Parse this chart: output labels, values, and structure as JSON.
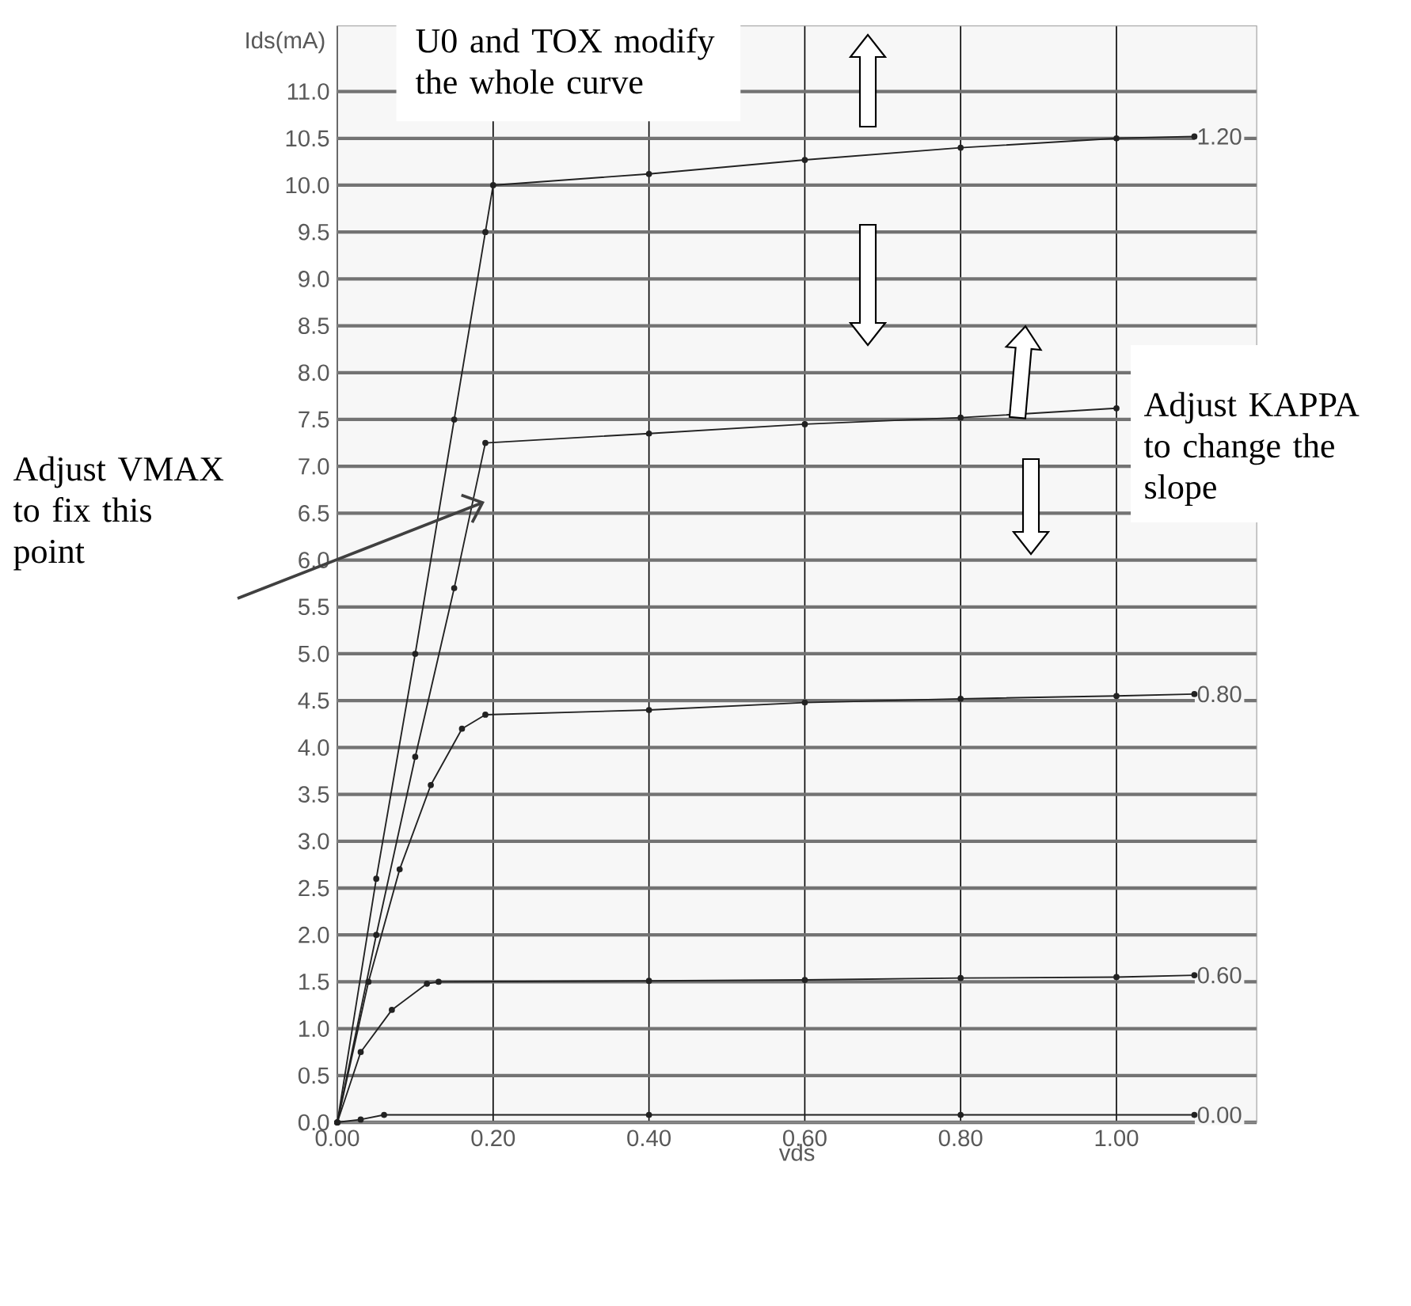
{
  "chart_data": {
    "type": "line",
    "xlabel": "vds",
    "ylabel": "Ids(mA)",
    "xlim": [
      0,
      1.18
    ],
    "ylim": [
      0,
      11.7
    ],
    "xticks": [
      {
        "value": 0,
        "label": "0.00"
      },
      {
        "value": 0.2,
        "label": "0.20"
      },
      {
        "value": 0.4,
        "label": "0.40"
      },
      {
        "value": 0.6,
        "label": "0.60"
      },
      {
        "value": 0.8,
        "label": "0.80"
      },
      {
        "value": 1.0,
        "label": "1.00"
      }
    ],
    "yticks": [
      {
        "value": 0,
        "label": "0.0"
      },
      {
        "value": 0.5,
        "label": "0.5"
      },
      {
        "value": 1,
        "label": "1.0"
      },
      {
        "value": 1.5,
        "label": "1.5"
      },
      {
        "value": 2,
        "label": "2.0"
      },
      {
        "value": 2.5,
        "label": "2.5"
      },
      {
        "value": 3,
        "label": "3.0"
      },
      {
        "value": 3.5,
        "label": "3.5"
      },
      {
        "value": 4,
        "label": "4.0"
      },
      {
        "value": 4.5,
        "label": "4.5"
      },
      {
        "value": 5,
        "label": "5.0"
      },
      {
        "value": 5.5,
        "label": "5.5"
      },
      {
        "value": 6,
        "label": "6.0"
      },
      {
        "value": 6.5,
        "label": "6.5"
      },
      {
        "value": 7,
        "label": "7.0"
      },
      {
        "value": 7.5,
        "label": "7.5"
      },
      {
        "value": 8,
        "label": "8.0"
      },
      {
        "value": 8.5,
        "label": "8.5"
      },
      {
        "value": 9,
        "label": "9.0"
      },
      {
        "value": 9.5,
        "label": "9.5"
      },
      {
        "value": 10,
        "label": "10.0"
      },
      {
        "value": 10.5,
        "label": "10.5"
      },
      {
        "value": 11,
        "label": "11.0"
      }
    ],
    "grid": true,
    "marker": "circle",
    "series": [
      {
        "name": "1.20",
        "color": "#222222",
        "x": [
          0,
          0.05,
          0.1,
          0.15,
          0.19,
          0.2,
          0.4,
          0.6,
          0.8,
          1.0,
          1.1
        ],
        "values": [
          0,
          2.6,
          5.0,
          7.5,
          9.5,
          10.0,
          10.12,
          10.27,
          10.4,
          10.5,
          10.52
        ]
      },
      {
        "color": "#222222",
        "x": [
          0,
          0.05,
          0.1,
          0.15,
          0.19,
          0.4,
          0.6,
          0.8,
          1.0
        ],
        "values": [
          0,
          2.0,
          3.9,
          5.7,
          7.25,
          7.35,
          7.45,
          7.52,
          7.62
        ]
      },
      {
        "name": "0.80",
        "color": "#222222",
        "x": [
          0,
          0.04,
          0.08,
          0.12,
          0.16,
          0.19,
          0.4,
          0.6,
          0.8,
          1.0,
          1.1
        ],
        "values": [
          0,
          1.5,
          2.7,
          3.6,
          4.2,
          4.35,
          4.4,
          4.48,
          4.52,
          4.55,
          4.57
        ]
      },
      {
        "name": "0.60",
        "color": "#222222",
        "x": [
          0,
          0.03,
          0.07,
          0.115,
          0.13,
          0.4,
          0.6,
          0.8,
          1.0,
          1.1
        ],
        "values": [
          0,
          0.75,
          1.2,
          1.48,
          1.5,
          1.51,
          1.52,
          1.54,
          1.55,
          1.57
        ]
      },
      {
        "name": "0.00",
        "color": "#222222",
        "x": [
          0,
          0.03,
          0.06,
          0.4,
          0.8,
          1.1
        ],
        "values": [
          0,
          0.03,
          0.08,
          0.08,
          0.08,
          0.08
        ]
      }
    ],
    "annotations": [
      "U0 and TOX modify the whole curve",
      "Adjust VMAX to fix this point",
      "Adjust KAPPA to change the slope"
    ]
  }
}
